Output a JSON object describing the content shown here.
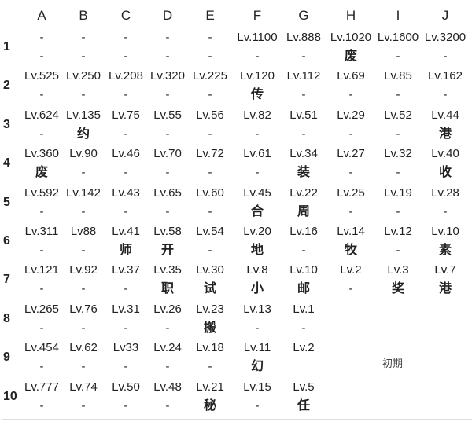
{
  "columns": [
    "A",
    "B",
    "C",
    "D",
    "E",
    "F",
    "G",
    "H",
    "I",
    "J"
  ],
  "rows": [
    {
      "label": "1",
      "cells": [
        [
          "-",
          "-"
        ],
        [
          "-",
          "-"
        ],
        [
          "-",
          "-"
        ],
        [
          "-",
          "-"
        ],
        [
          "-",
          "-"
        ],
        [
          "Lv.1100",
          "-"
        ],
        [
          "Lv.888",
          "-"
        ],
        [
          "Lv.1020",
          "废"
        ],
        [
          "Lv.1600",
          "-"
        ],
        [
          "Lv.3200",
          "-"
        ]
      ]
    },
    {
      "label": "2",
      "cells": [
        [
          "Lv.525",
          "-"
        ],
        [
          "Lv.250",
          "-"
        ],
        [
          "Lv.208",
          "-"
        ],
        [
          "Lv.320",
          "-"
        ],
        [
          "Lv.225",
          "-"
        ],
        [
          "Lv.120",
          "传"
        ],
        [
          "Lv.112",
          "-"
        ],
        [
          "Lv.69",
          "-"
        ],
        [
          "Lv.85",
          "-"
        ],
        [
          "Lv.162",
          "-"
        ]
      ]
    },
    {
      "label": "3",
      "cells": [
        [
          "Lv.624",
          "-"
        ],
        [
          "Lv.135",
          "约"
        ],
        [
          "Lv.75",
          "-"
        ],
        [
          "Lv.55",
          "-"
        ],
        [
          "Lv.56",
          "-"
        ],
        [
          "Lv.82",
          "-"
        ],
        [
          "Lv.51",
          "-"
        ],
        [
          "Lv.29",
          "-"
        ],
        [
          "Lv.52",
          "-"
        ],
        [
          "Lv.44",
          "港"
        ]
      ]
    },
    {
      "label": "4",
      "cells": [
        [
          "Lv.360",
          "废"
        ],
        [
          "Lv.90",
          "-"
        ],
        [
          "Lv.46",
          "-"
        ],
        [
          "Lv.70",
          "-"
        ],
        [
          "Lv.72",
          "-"
        ],
        [
          "Lv.61",
          "-"
        ],
        [
          "Lv.34",
          "装"
        ],
        [
          "Lv.27",
          "-"
        ],
        [
          "Lv.32",
          "-"
        ],
        [
          "Lv.40",
          "收"
        ]
      ]
    },
    {
      "label": "5",
      "cells": [
        [
          "Lv.592",
          "-"
        ],
        [
          "Lv.142",
          "-"
        ],
        [
          "Lv.43",
          "-"
        ],
        [
          "Lv.65",
          "-"
        ],
        [
          "Lv.60",
          "-"
        ],
        [
          "Lv.45",
          "合"
        ],
        [
          "Lv.22",
          "周"
        ],
        [
          "Lv.25",
          "-"
        ],
        [
          "Lv.19",
          "-"
        ],
        [
          "Lv.28",
          "-"
        ]
      ]
    },
    {
      "label": "6",
      "cells": [
        [
          "Lv.311",
          "-"
        ],
        [
          "Lv88",
          "-"
        ],
        [
          "Lv.41",
          "师"
        ],
        [
          "Lv.58",
          "开"
        ],
        [
          "Lv.54",
          "-"
        ],
        [
          "Lv.20",
          "地"
        ],
        [
          "Lv.16",
          "-"
        ],
        [
          "Lv.14",
          "牧"
        ],
        [
          "Lv.12",
          "-"
        ],
        [
          "Lv.10",
          "素"
        ]
      ]
    },
    {
      "label": "7",
      "cells": [
        [
          "Lv.121",
          "-"
        ],
        [
          "Lv.92",
          "-"
        ],
        [
          "Lv.37",
          "-"
        ],
        [
          "Lv.35",
          "职"
        ],
        [
          "Lv.30",
          "试"
        ],
        [
          "Lv.8",
          "小"
        ],
        [
          "Lv.10",
          "邮"
        ],
        [
          "Lv.2",
          "-"
        ],
        [
          "Lv.3",
          "奖"
        ],
        [
          "Lv.7",
          "港"
        ]
      ]
    },
    {
      "label": "8",
      "cells": [
        [
          "Lv.265",
          "-"
        ],
        [
          "Lv.76",
          "-"
        ],
        [
          "Lv.31",
          "-"
        ],
        [
          "Lv.26",
          "-"
        ],
        [
          "Lv.23",
          "搬"
        ],
        [
          "Lv.13",
          "-"
        ],
        [
          "Lv.1",
          "-"
        ],
        [
          "",
          ""
        ],
        [
          "",
          ""
        ],
        [
          "",
          ""
        ]
      ]
    },
    {
      "label": "9",
      "cells": [
        [
          "Lv.454",
          "-"
        ],
        [
          "Lv.62",
          "-"
        ],
        [
          "Lv33",
          "-"
        ],
        [
          "Lv.24",
          "-"
        ],
        [
          "Lv.18",
          "-"
        ],
        [
          "Lv.11",
          "幻"
        ],
        [
          "Lv.2",
          ""
        ],
        [
          "",
          ""
        ],
        [
          "",
          ""
        ],
        [
          "",
          ""
        ]
      ]
    },
    {
      "label": "10",
      "cells": [
        [
          "Lv.777",
          "-"
        ],
        [
          "Lv.74",
          "-"
        ],
        [
          "Lv.50",
          "-"
        ],
        [
          "Lv.48",
          "-"
        ],
        [
          "Lv.21",
          "秘"
        ],
        [
          "Lv.15",
          "-"
        ],
        [
          "Lv.5",
          "任"
        ],
        [
          "",
          ""
        ],
        [
          "",
          ""
        ],
        [
          "",
          ""
        ]
      ]
    }
  ],
  "note": "初期"
}
